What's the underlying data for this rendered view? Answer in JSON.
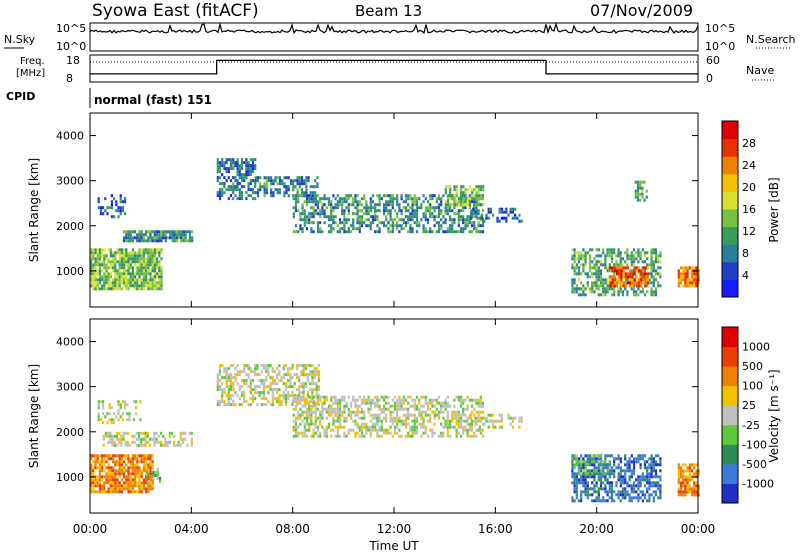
{
  "header": {
    "station": "Syowa East (fitACF)",
    "beam": "Beam 13",
    "date": "07/Nov/2009"
  },
  "top_panels": {
    "nsky_label": "N.Sky",
    "nsky_ticks": [
      "10^5",
      "10^0"
    ],
    "nsearch_label": "N.Search",
    "nsearch_ticks": [
      "10^5",
      "10^0"
    ],
    "freq_label_1": "Freq.",
    "freq_label_2": "[MHz]",
    "freq_ticks": [
      "18",
      "8"
    ],
    "nave_label": "Nave",
    "nave_ticks": [
      "60",
      "0"
    ],
    "cpid_label": "CPID",
    "cpid_value": "normal (fast) 151"
  },
  "chart_data": [
    {
      "type": "heatmap",
      "name": "power",
      "ylabel": "Slant Range [km]",
      "ylim": [
        200,
        4500
      ],
      "yticks": [
        "4000",
        "3000",
        "2000",
        "1000"
      ],
      "colorbar_label": "Power [dB]",
      "colorbar_ticks": [
        "28",
        "24",
        "20",
        "16",
        "12",
        "8",
        "4"
      ],
      "colorbar_colors": [
        "#1a1aff",
        "#1f3fc8",
        "#2a7f9a",
        "#3a9a5a",
        "#76c043",
        "#d8e030",
        "#f5c000",
        "#f08000",
        "#e83000",
        "#e00000"
      ],
      "color_range": [
        0,
        32
      ],
      "regions": [
        {
          "t0": 0.0,
          "t1": 2.8,
          "r0": 600,
          "r1": 1500,
          "v": 14,
          "density": 0.85
        },
        {
          "t0": 0.3,
          "t1": 1.4,
          "r0": 2200,
          "r1": 2700,
          "v": 6,
          "density": 0.35
        },
        {
          "t0": 1.3,
          "t1": 4.0,
          "r0": 1700,
          "r1": 1900,
          "v": 10,
          "density": 0.8
        },
        {
          "t0": 5.0,
          "t1": 6.5,
          "r0": 2600,
          "r1": 3500,
          "v": 8,
          "density": 0.6
        },
        {
          "t0": 6.5,
          "t1": 9.0,
          "r0": 2700,
          "r1": 3100,
          "v": 9,
          "density": 0.6
        },
        {
          "t0": 8.0,
          "t1": 15.5,
          "r0": 1900,
          "r1": 2700,
          "v": 10,
          "density": 0.55
        },
        {
          "t0": 14.0,
          "t1": 15.5,
          "r0": 2500,
          "r1": 2900,
          "v": 14,
          "density": 0.7
        },
        {
          "t0": 15.0,
          "t1": 17.0,
          "r0": 2100,
          "r1": 2400,
          "v": 6,
          "density": 0.35
        },
        {
          "t0": 19.0,
          "t1": 22.5,
          "r0": 500,
          "r1": 1500,
          "v": 12,
          "density": 0.55
        },
        {
          "t0": 20.5,
          "t1": 22.0,
          "r0": 700,
          "r1": 1100,
          "v": 26,
          "density": 0.75
        },
        {
          "t0": 23.2,
          "t1": 24.0,
          "r0": 700,
          "r1": 1100,
          "v": 24,
          "density": 0.8
        },
        {
          "t0": 21.5,
          "t1": 22.0,
          "r0": 2600,
          "r1": 3000,
          "v": 12,
          "density": 0.6
        }
      ]
    },
    {
      "type": "heatmap",
      "name": "velocity",
      "ylabel": "Slant Range [km]",
      "ylim": [
        200,
        4500
      ],
      "yticks": [
        "4000",
        "3000",
        "2000",
        "1000"
      ],
      "colorbar_label": "Velocity [m s⁻¹]",
      "colorbar_ticks": [
        "1000",
        "500",
        "100",
        "25",
        "-25",
        "-100",
        "-500",
        "-1000"
      ],
      "colorbar_colors": [
        "#2030c0",
        "#3d7bd8",
        "#2e8b57",
        "#5cc83a",
        "#bfbfbf",
        "#f5c000",
        "#f08000",
        "#e84000",
        "#e00000"
      ],
      "regions": [
        {
          "t0": 0.0,
          "t1": 2.5,
          "r0": 700,
          "r1": 1500,
          "c": 6,
          "density": 0.85
        },
        {
          "t0": 2.2,
          "t1": 2.8,
          "r0": 900,
          "r1": 1200,
          "c": 3,
          "density": 0.6
        },
        {
          "t0": 0.5,
          "t1": 4.0,
          "r0": 1700,
          "r1": 2000,
          "c": 4,
          "density": 0.6
        },
        {
          "t0": 0.3,
          "t1": 2.0,
          "r0": 2200,
          "r1": 2700,
          "c": 4,
          "density": 0.3
        },
        {
          "t0": 5.0,
          "t1": 9.0,
          "r0": 2600,
          "r1": 3500,
          "c": 4,
          "density": 0.55
        },
        {
          "t0": 8.0,
          "t1": 15.5,
          "r0": 1900,
          "r1": 2800,
          "c": 4,
          "density": 0.55
        },
        {
          "t0": 15.0,
          "t1": 17.0,
          "r0": 2100,
          "r1": 2400,
          "c": 4,
          "density": 0.35
        },
        {
          "t0": 19.0,
          "t1": 22.5,
          "r0": 500,
          "r1": 1500,
          "c": 1,
          "density": 0.6
        },
        {
          "t0": 19.0,
          "t1": 20.5,
          "r0": 1100,
          "r1": 1500,
          "c": 3,
          "density": 0.5
        },
        {
          "t0": 23.2,
          "t1": 24.0,
          "r0": 600,
          "r1": 1300,
          "c": 6,
          "density": 0.8
        }
      ]
    }
  ],
  "x_axis": {
    "label": "Time UT",
    "ticks": [
      "00:00",
      "04:00",
      "08:00",
      "12:00",
      "16:00",
      "20:00",
      "00:00"
    ]
  },
  "freq_series": [
    {
      "t0": 0,
      "t1": 5,
      "v": 11
    },
    {
      "t0": 5,
      "t1": 18,
      "v": 16
    },
    {
      "t0": 18,
      "t1": 24,
      "v": 11
    }
  ]
}
